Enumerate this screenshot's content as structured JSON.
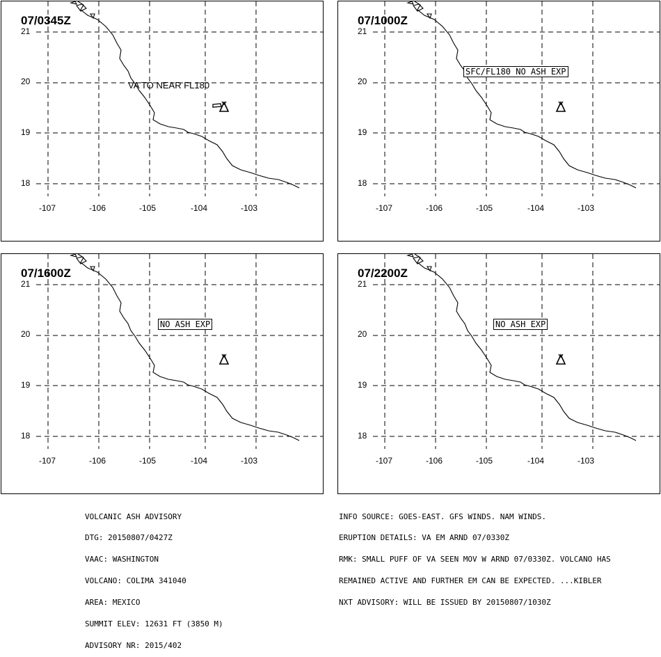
{
  "colors": {
    "line": "#000000",
    "background": "#ffffff"
  },
  "panels": [
    {
      "time": "07/0345Z",
      "label": "VA TO NEAR FL180",
      "label_boxed": false,
      "has_ash_polygon": true
    },
    {
      "time": "07/1000Z",
      "label": "SFC/FL180 NO ASH EXP",
      "label_boxed": true,
      "has_ash_polygon": false
    },
    {
      "time": "07/1600Z",
      "label": "NO ASH EXP",
      "label_boxed": true,
      "has_ash_polygon": false
    },
    {
      "time": "07/2200Z",
      "label": "NO ASH EXP",
      "label_boxed": true,
      "has_ash_polygon": false
    }
  ],
  "latitudes": [
    "21",
    "20",
    "19",
    "18"
  ],
  "longitudes": [
    "-107",
    "-106",
    "-105",
    "-104",
    "-103"
  ],
  "volcano_icon": "volcano-triangle-icon",
  "advisory_left": [
    "VOLCANIC ASH ADVISORY",
    "DTG: 20150807/0427Z",
    "VAAC: WASHINGTON",
    "VOLCANO: COLIMA 341040",
    "AREA: MEXICO",
    "SUMMIT ELEV: 12631 FT (3850 M)",
    "ADVISORY NR: 2015/402"
  ],
  "advisory_right": [
    "INFO SOURCE: GOES-EAST. GFS WINDS. NAM WINDS.",
    "ERUPTION DETAILS: VA EM ARND 07/0330Z",
    "RMK: SMALL PUFF OF VA SEEN MOV W ARND 07/0330Z. VOLCANO HAS",
    "REMAINED ACTIVE AND FURTHER EM CAN BE EXPECTED. ...KIBLER",
    "NXT ADVISORY: WILL BE ISSUED BY 20150807/1030Z"
  ]
}
